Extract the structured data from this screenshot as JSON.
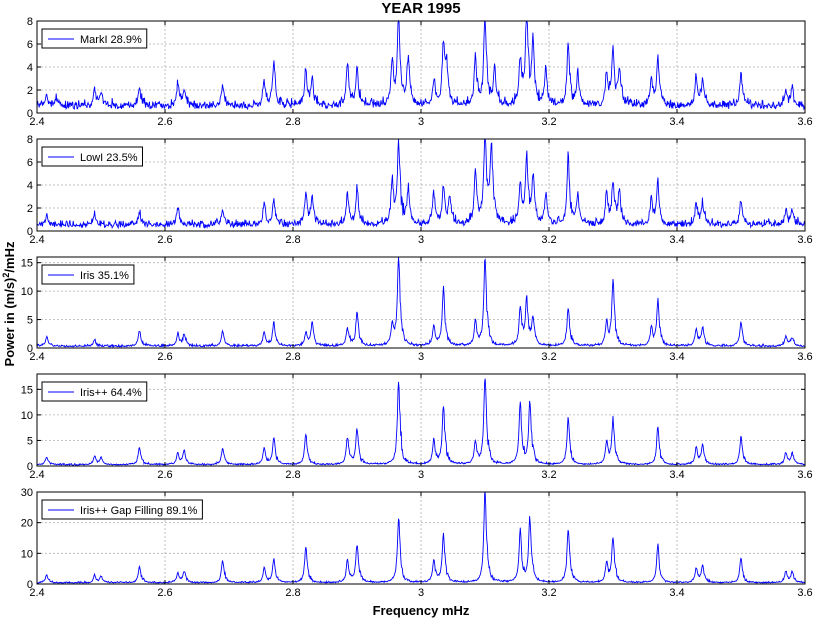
{
  "figure": {
    "title": "YEAR 1995",
    "xlabel": "Frequency mHz",
    "ylabel_main": "Power in (m/s)",
    "ylabel_sup": "2",
    "ylabel_tail": "/mHz"
  },
  "colors": {
    "line": "#0000ff",
    "grid": "#b0b0b0",
    "axes": "#000000",
    "background": "#ffffff"
  },
  "chart_data": [
    {
      "type": "line",
      "legend": "MarkI 28.9%",
      "xlim": [
        2.4,
        3.6
      ],
      "ylim": [
        0,
        8
      ],
      "xticks": [
        2.4,
        2.6,
        2.8,
        3,
        3.2,
        3.4,
        3.6
      ],
      "xtick_labels": [
        "2.4",
        "2.6",
        "2.8",
        "3",
        "3.2",
        "3.4",
        "3.6"
      ],
      "yticks": [
        0,
        2,
        4,
        6,
        8
      ],
      "ytick_labels": [
        "0",
        "2",
        "4",
        "6",
        "8"
      ],
      "grid": true,
      "legend_position": "top-left",
      "baseline": 0.45,
      "noise": 0.35,
      "seed": 11,
      "peaks": [
        [
          2.415,
          0.9
        ],
        [
          2.43,
          0.7
        ],
        [
          2.49,
          1.5
        ],
        [
          2.5,
          1.1
        ],
        [
          2.56,
          1.6
        ],
        [
          2.62,
          1.9
        ],
        [
          2.63,
          1.4
        ],
        [
          2.69,
          1.8
        ],
        [
          2.755,
          2.0
        ],
        [
          2.77,
          3.5
        ],
        [
          2.82,
          3.1
        ],
        [
          2.83,
          2.0
        ],
        [
          2.885,
          3.6
        ],
        [
          2.9,
          3.2
        ],
        [
          2.955,
          3.7
        ],
        [
          2.965,
          7.6
        ],
        [
          2.98,
          4.0
        ],
        [
          3.02,
          2.2
        ],
        [
          3.035,
          5.0
        ],
        [
          3.04,
          3.1
        ],
        [
          3.085,
          4.1
        ],
        [
          3.1,
          7.4
        ],
        [
          3.115,
          3.0
        ],
        [
          3.155,
          3.7
        ],
        [
          3.165,
          7.8
        ],
        [
          3.175,
          5.3
        ],
        [
          3.195,
          3.0
        ],
        [
          3.23,
          5.1
        ],
        [
          3.245,
          2.6
        ],
        [
          3.29,
          2.7
        ],
        [
          3.3,
          4.6
        ],
        [
          3.31,
          3.0
        ],
        [
          3.36,
          2.2
        ],
        [
          3.37,
          3.9
        ],
        [
          3.43,
          2.4
        ],
        [
          3.44,
          2.1
        ],
        [
          3.5,
          2.7
        ],
        [
          3.57,
          1.4
        ],
        [
          3.58,
          1.4
        ]
      ]
    },
    {
      "type": "line",
      "legend": "LowI 23.5%",
      "xlim": [
        2.4,
        3.6
      ],
      "ylim": [
        0,
        8
      ],
      "xticks": [
        2.4,
        2.6,
        2.8,
        3,
        3.2,
        3.4,
        3.6
      ],
      "xtick_labels": [
        "2.4",
        "2.6",
        "2.8",
        "3",
        "3.2",
        "3.4",
        "3.6"
      ],
      "yticks": [
        0,
        2,
        4,
        6,
        8
      ],
      "ytick_labels": [
        "0",
        "2",
        "4",
        "6",
        "8"
      ],
      "grid": true,
      "legend_position": "top-left",
      "baseline": 0.4,
      "noise": 0.3,
      "seed": 23,
      "peaks": [
        [
          2.415,
          0.8
        ],
        [
          2.49,
          0.9
        ],
        [
          2.56,
          1.1
        ],
        [
          2.62,
          1.3
        ],
        [
          2.69,
          1.3
        ],
        [
          2.755,
          1.7
        ],
        [
          2.77,
          2.1
        ],
        [
          2.82,
          2.7
        ],
        [
          2.83,
          2.3
        ],
        [
          2.885,
          2.6
        ],
        [
          2.9,
          3.0
        ],
        [
          2.955,
          3.6
        ],
        [
          2.965,
          6.8
        ],
        [
          2.98,
          3.0
        ],
        [
          3.02,
          2.6
        ],
        [
          3.035,
          3.2
        ],
        [
          3.045,
          2.2
        ],
        [
          3.085,
          4.3
        ],
        [
          3.1,
          7.6
        ],
        [
          3.11,
          6.3
        ],
        [
          3.155,
          3.3
        ],
        [
          3.165,
          5.5
        ],
        [
          3.175,
          3.7
        ],
        [
          3.195,
          2.6
        ],
        [
          3.23,
          5.6
        ],
        [
          3.245,
          2.4
        ],
        [
          3.29,
          2.7
        ],
        [
          3.3,
          3.5
        ],
        [
          3.31,
          2.8
        ],
        [
          3.36,
          2.1
        ],
        [
          3.37,
          3.4
        ],
        [
          3.43,
          1.8
        ],
        [
          3.44,
          1.7
        ],
        [
          3.5,
          2.1
        ],
        [
          3.57,
          1.2
        ],
        [
          3.58,
          1.2
        ]
      ]
    },
    {
      "type": "line",
      "legend": "Iris 35.1%",
      "xlim": [
        2.4,
        3.6
      ],
      "ylim": [
        0,
        16
      ],
      "xticks": [
        2.4,
        2.6,
        2.8,
        3,
        3.2,
        3.4,
        3.6
      ],
      "xtick_labels": [
        "2.4",
        "2.6",
        "2.8",
        "3",
        "3.2",
        "3.4",
        "3.6"
      ],
      "yticks": [
        0,
        5,
        10,
        15
      ],
      "ytick_labels": [
        "0",
        "5",
        "10",
        "15"
      ],
      "grid": true,
      "legend_position": "top-left",
      "baseline": 0.25,
      "noise": 0.2,
      "seed": 37,
      "peaks": [
        [
          2.415,
          1.5
        ],
        [
          2.49,
          1.0
        ],
        [
          2.56,
          2.6
        ],
        [
          2.62,
          2.2
        ],
        [
          2.63,
          1.8
        ],
        [
          2.69,
          2.6
        ],
        [
          2.755,
          2.3
        ],
        [
          2.77,
          4.0
        ],
        [
          2.82,
          2.2
        ],
        [
          2.83,
          3.9
        ],
        [
          2.885,
          2.9
        ],
        [
          2.9,
          5.6
        ],
        [
          2.955,
          3.5
        ],
        [
          2.965,
          15.3
        ],
        [
          3.02,
          3.2
        ],
        [
          3.035,
          9.7
        ],
        [
          3.085,
          4.0
        ],
        [
          3.1,
          14.7
        ],
        [
          3.155,
          6.2
        ],
        [
          3.165,
          7.7
        ],
        [
          3.175,
          4.6
        ],
        [
          3.23,
          6.6
        ],
        [
          3.29,
          3.9
        ],
        [
          3.3,
          10.8
        ],
        [
          3.36,
          3.0
        ],
        [
          3.37,
          7.5
        ],
        [
          3.43,
          2.8
        ],
        [
          3.44,
          3.2
        ],
        [
          3.5,
          4.0
        ],
        [
          3.57,
          1.6
        ],
        [
          3.58,
          1.4
        ]
      ]
    },
    {
      "type": "line",
      "legend": "Iris++ 64.4%",
      "xlim": [
        2.4,
        3.6
      ],
      "ylim": [
        0,
        18
      ],
      "xticks": [
        2.4,
        2.6,
        2.8,
        3,
        3.2,
        3.4,
        3.6
      ],
      "xtick_labels": [
        "2.4",
        "2.6",
        "2.8",
        "3",
        "3.2",
        "3.4",
        "3.6"
      ],
      "yticks": [
        0,
        5,
        10,
        15
      ],
      "ytick_labels": [
        "0",
        "5",
        "10",
        "15"
      ],
      "grid": true,
      "legend_position": "top-left",
      "baseline": 0.2,
      "noise": 0.15,
      "seed": 53,
      "peaks": [
        [
          2.415,
          1.5
        ],
        [
          2.49,
          1.6
        ],
        [
          2.5,
          1.3
        ],
        [
          2.56,
          3.3
        ],
        [
          2.62,
          2.2
        ],
        [
          2.63,
          2.6
        ],
        [
          2.69,
          3.2
        ],
        [
          2.755,
          3.2
        ],
        [
          2.77,
          5.1
        ],
        [
          2.82,
          5.7
        ],
        [
          2.885,
          5.0
        ],
        [
          2.9,
          6.7
        ],
        [
          2.965,
          16.2
        ],
        [
          3.02,
          4.6
        ],
        [
          3.035,
          10.9
        ],
        [
          3.085,
          4.2
        ],
        [
          3.1,
          16.7
        ],
        [
          3.155,
          11.5
        ],
        [
          3.17,
          11.7
        ],
        [
          3.23,
          8.7
        ],
        [
          3.29,
          4.1
        ],
        [
          3.3,
          8.4
        ],
        [
          3.37,
          6.9
        ],
        [
          3.43,
          3.2
        ],
        [
          3.44,
          3.6
        ],
        [
          3.5,
          5.2
        ],
        [
          3.57,
          2.2
        ],
        [
          3.58,
          2.2
        ]
      ]
    },
    {
      "type": "line",
      "legend": "Iris++ Gap Filling 89.1%",
      "xlim": [
        2.4,
        3.6
      ],
      "ylim": [
        0,
        30
      ],
      "xticks": [
        2.4,
        2.6,
        2.8,
        3,
        3.2,
        3.4,
        3.6
      ],
      "xtick_labels": [
        "2.4",
        "2.6",
        "2.8",
        "3",
        "3.2",
        "3.4",
        "3.6"
      ],
      "yticks": [
        0,
        10,
        20,
        30
      ],
      "ytick_labels": [
        "0",
        "10",
        "20",
        "30"
      ],
      "grid": true,
      "legend_position": "top-left",
      "baseline": 0.3,
      "noise": 0.25,
      "seed": 71,
      "peaks": [
        [
          2.415,
          2.5
        ],
        [
          2.49,
          2.2
        ],
        [
          2.5,
          2.0
        ],
        [
          2.56,
          5.0
        ],
        [
          2.62,
          3.0
        ],
        [
          2.63,
          3.5
        ],
        [
          2.69,
          7.0
        ],
        [
          2.755,
          4.5
        ],
        [
          2.77,
          7.5
        ],
        [
          2.82,
          11.0
        ],
        [
          2.885,
          7.0
        ],
        [
          2.9,
          12.0
        ],
        [
          2.965,
          20.7
        ],
        [
          3.02,
          7.0
        ],
        [
          3.035,
          15.6
        ],
        [
          3.1,
          29.0
        ],
        [
          3.155,
          16.0
        ],
        [
          3.17,
          20.0
        ],
        [
          3.23,
          16.5
        ],
        [
          3.29,
          6.0
        ],
        [
          3.3,
          14.0
        ],
        [
          3.37,
          12.0
        ],
        [
          3.43,
          4.5
        ],
        [
          3.44,
          5.5
        ],
        [
          3.5,
          8.0
        ],
        [
          3.57,
          3.5
        ],
        [
          3.58,
          3.5
        ]
      ]
    }
  ]
}
